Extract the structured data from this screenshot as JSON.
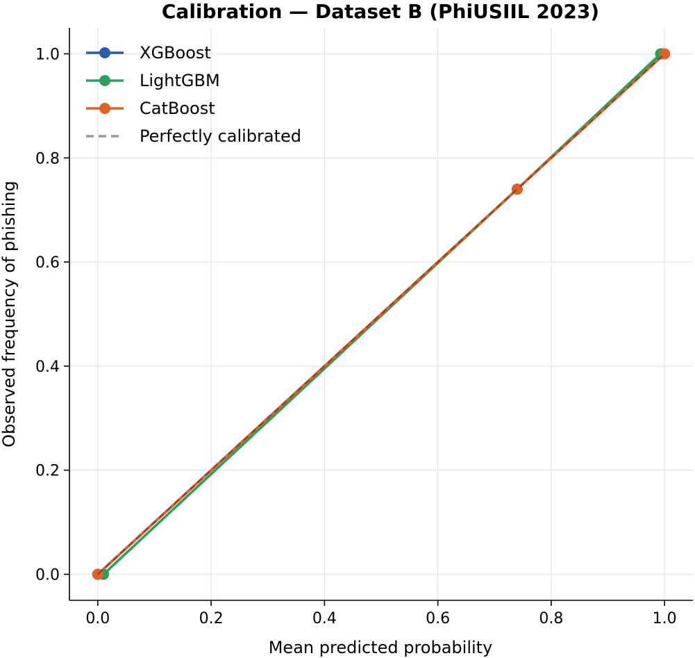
{
  "chart_data": {
    "type": "line",
    "title": "Calibration — Dataset B (PhiUSIIL 2023)",
    "xlabel": "Mean predicted probability",
    "ylabel": "Observed frequency of phishing",
    "xlim": [
      -0.05,
      1.05
    ],
    "ylim": [
      -0.05,
      1.05
    ],
    "xticks": [
      "0.0",
      "0.2",
      "0.4",
      "0.6",
      "0.8",
      "1.0"
    ],
    "yticks": [
      "0.0",
      "0.2",
      "0.4",
      "0.6",
      "0.8",
      "1.0"
    ],
    "grid": true,
    "legend_position": "top-left",
    "series": [
      {
        "name": "XGBoost",
        "color": "#2e5aa8",
        "style": "solid",
        "marker": "circle",
        "x": [
          0.0,
          0.74,
          0.995
        ],
        "y": [
          0.0,
          0.74,
          1.0
        ]
      },
      {
        "name": "LightGBM",
        "color": "#2ca05a",
        "style": "solid",
        "marker": "circle",
        "x": [
          0.01,
          0.74,
          0.993
        ],
        "y": [
          0.0,
          0.74,
          1.0
        ]
      },
      {
        "name": "CatBoost",
        "color": "#e0622a",
        "style": "solid",
        "marker": "circle",
        "x": [
          0.0,
          0.74,
          1.0
        ],
        "y": [
          0.0,
          0.74,
          1.0
        ]
      },
      {
        "name": "Perfectly calibrated",
        "color": "#999999",
        "style": "dashed",
        "marker": "none",
        "x": [
          0.0,
          1.0
        ],
        "y": [
          0.0,
          1.0
        ]
      }
    ]
  }
}
